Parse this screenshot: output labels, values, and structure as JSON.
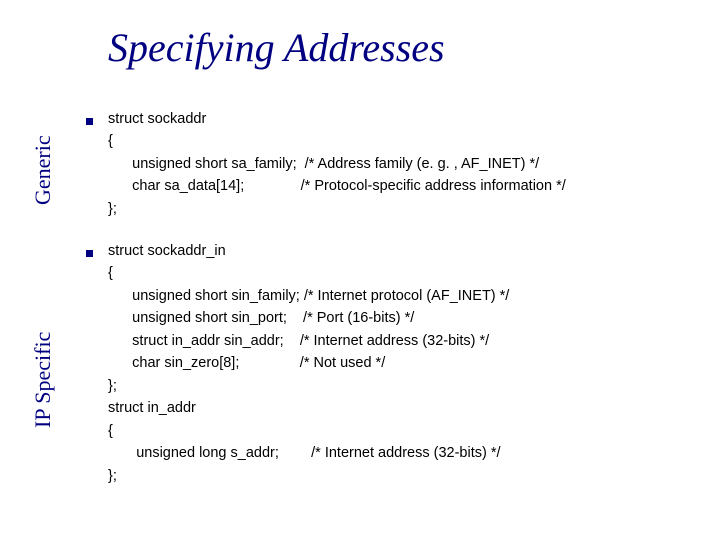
{
  "slide": {
    "title": "Specifying Addresses",
    "title_color": "#000080",
    "title_fontsize": 40,
    "background_color": "#ffffff",
    "labels": {
      "generic": "Generic",
      "ipspecific": "IP Specific",
      "label_color": "#000080",
      "label_fontsize": 22
    },
    "bullet": {
      "color": "#000080",
      "size": 7
    },
    "code": {
      "color": "#000000",
      "fontsize": 14.5,
      "block1": "struct sockaddr\n{\n      unsigned short sa_family;  /* Address family (e. g. , AF_INET) */\n      char sa_data[14];              /* Protocol-specific address information */\n};",
      "block2": "struct sockaddr_in\n{\n      unsigned short sin_family; /* Internet protocol (AF_INET) */\n      unsigned short sin_port;    /* Port (16-bits) */\n      struct in_addr sin_addr;    /* Internet address (32-bits) */\n      char sin_zero[8];               /* Not used */\n};\nstruct in_addr\n{\n       unsigned long s_addr;        /* Internet address (32-bits) */\n};"
    }
  }
}
